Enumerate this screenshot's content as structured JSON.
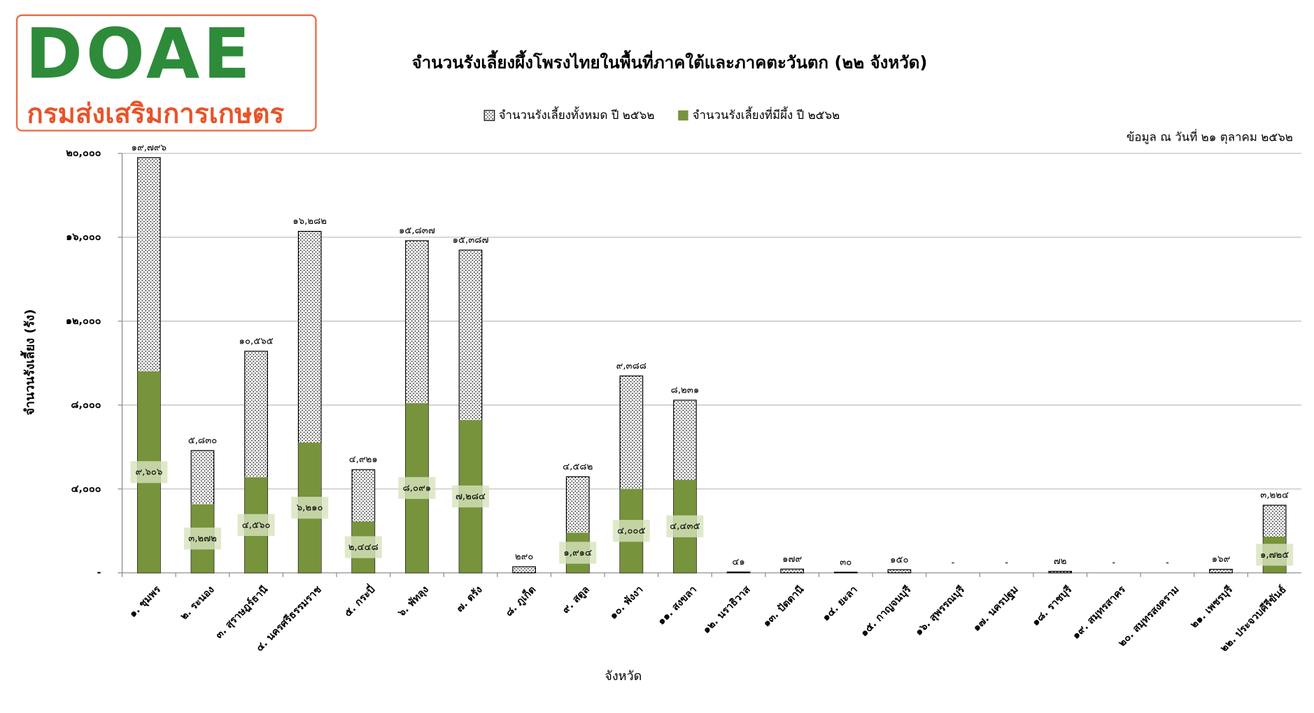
{
  "logo": {
    "title": "DOAE",
    "subtitle": "กรมส่งเสริมการเกษตร"
  },
  "chart_data": {
    "type": "bar",
    "title": "จำนวนรังเลี้ยงผึ้งโพรงไทยในพื้นที่ภาคใต้และภาคตะวันตก (๒๒ จังหวัด)",
    "annotation": "ข้อมูล ณ วันที่ ๒๑ ตุลาคม ๒๕๖๒",
    "x_label": "จังหวัด",
    "y_label": "จำนวนรังเลี้ยง (รัง)",
    "categories": [
      "๑. ชุมพร",
      "๒. ระนอง",
      "๓. สุราษฎร์ธานี",
      "๔. นครศรีธรรมราช",
      "๕. กระบี่",
      "๖. พัทลุง",
      "๗. ตรัง",
      "๘. ภูเก็ต",
      "๙. สตูล",
      "๑๐. พังงา",
      "๑๑. สงขลา",
      "๑๒. นราธิวาส",
      "๑๓. ปัตตานี",
      "๑๔. ยะลา",
      "๑๕. กาญจนบุรี",
      "๑๖. สุพรรณบุรี",
      "๑๗. นครปฐม",
      "๑๘. ราชบุรี",
      "๑๙. สมุทรสาคร",
      "๒๐. สมุทรสงคราม",
      "๒๑. เพชรบุรี",
      "๒๒. ประจวบคีรีขันธ์"
    ],
    "series": [
      {
        "name": "จำนวนรังเลี้ยงทั้งหมด  ปี ๒๕๖๒",
        "color": "#000000",
        "pattern": "dots",
        "values": [
          19796,
          5830,
          10565,
          16282,
          4921,
          15837,
          15387,
          290,
          4582,
          9388,
          8231,
          41,
          179,
          30,
          150,
          0,
          0,
          72,
          0,
          0,
          169,
          3224
        ],
        "value_labels": [
          "๑๙,๗๙๖",
          "๕,๘๓๐",
          "๑๐,๕๖๕",
          "๑๖,๒๘๒",
          "๔,๙๒๑",
          "๑๕,๘๓๗",
          "๑๕,๓๘๗",
          "๒๙๐",
          "๔,๕๘๒",
          "๙,๓๘๘",
          "๘,๒๓๑",
          "๔๑",
          "๑๗๙",
          "๓๐",
          "๑๕๐",
          "-",
          "-",
          "๗๒",
          "-",
          "-",
          "๑๖๙",
          "๓,๒๒๔"
        ]
      },
      {
        "name": "จำนวนรังเลี้ยงที่มีผึ้ง  ปี ๒๕๖๒",
        "color": "#77933c",
        "values": [
          9606,
          3272,
          4560,
          6210,
          2448,
          8091,
          7284,
          null,
          1914,
          4005,
          4435,
          null,
          null,
          null,
          null,
          null,
          null,
          null,
          null,
          null,
          null,
          1725
        ],
        "value_labels": [
          "๙,๖๐๖",
          "๓,๒๗๒",
          "๔,๕๖๐",
          "๖,๒๑๐",
          "๒,๔๔๘",
          "๘,๐๙๑",
          "๗,๒๘๔",
          null,
          "๑,๙๑๔",
          "๔,๐๐๕",
          "๔,๔๓๕",
          null,
          null,
          null,
          null,
          null,
          null,
          null,
          null,
          null,
          null,
          "๑,๗๒๕"
        ]
      }
    ],
    "ylim": [
      0,
      20000
    ],
    "yticks": [
      {
        "value": 0,
        "label": "-"
      },
      {
        "value": 4000,
        "label": "๔,๐๐๐"
      },
      {
        "value": 8000,
        "label": "๘,๐๐๐"
      },
      {
        "value": 12000,
        "label": "๑๒,๐๐๐"
      },
      {
        "value": 16000,
        "label": "๑๖,๐๐๐"
      },
      {
        "value": 20000,
        "label": "๒๐,๐๐๐"
      }
    ],
    "grid": true,
    "legend": "top"
  }
}
